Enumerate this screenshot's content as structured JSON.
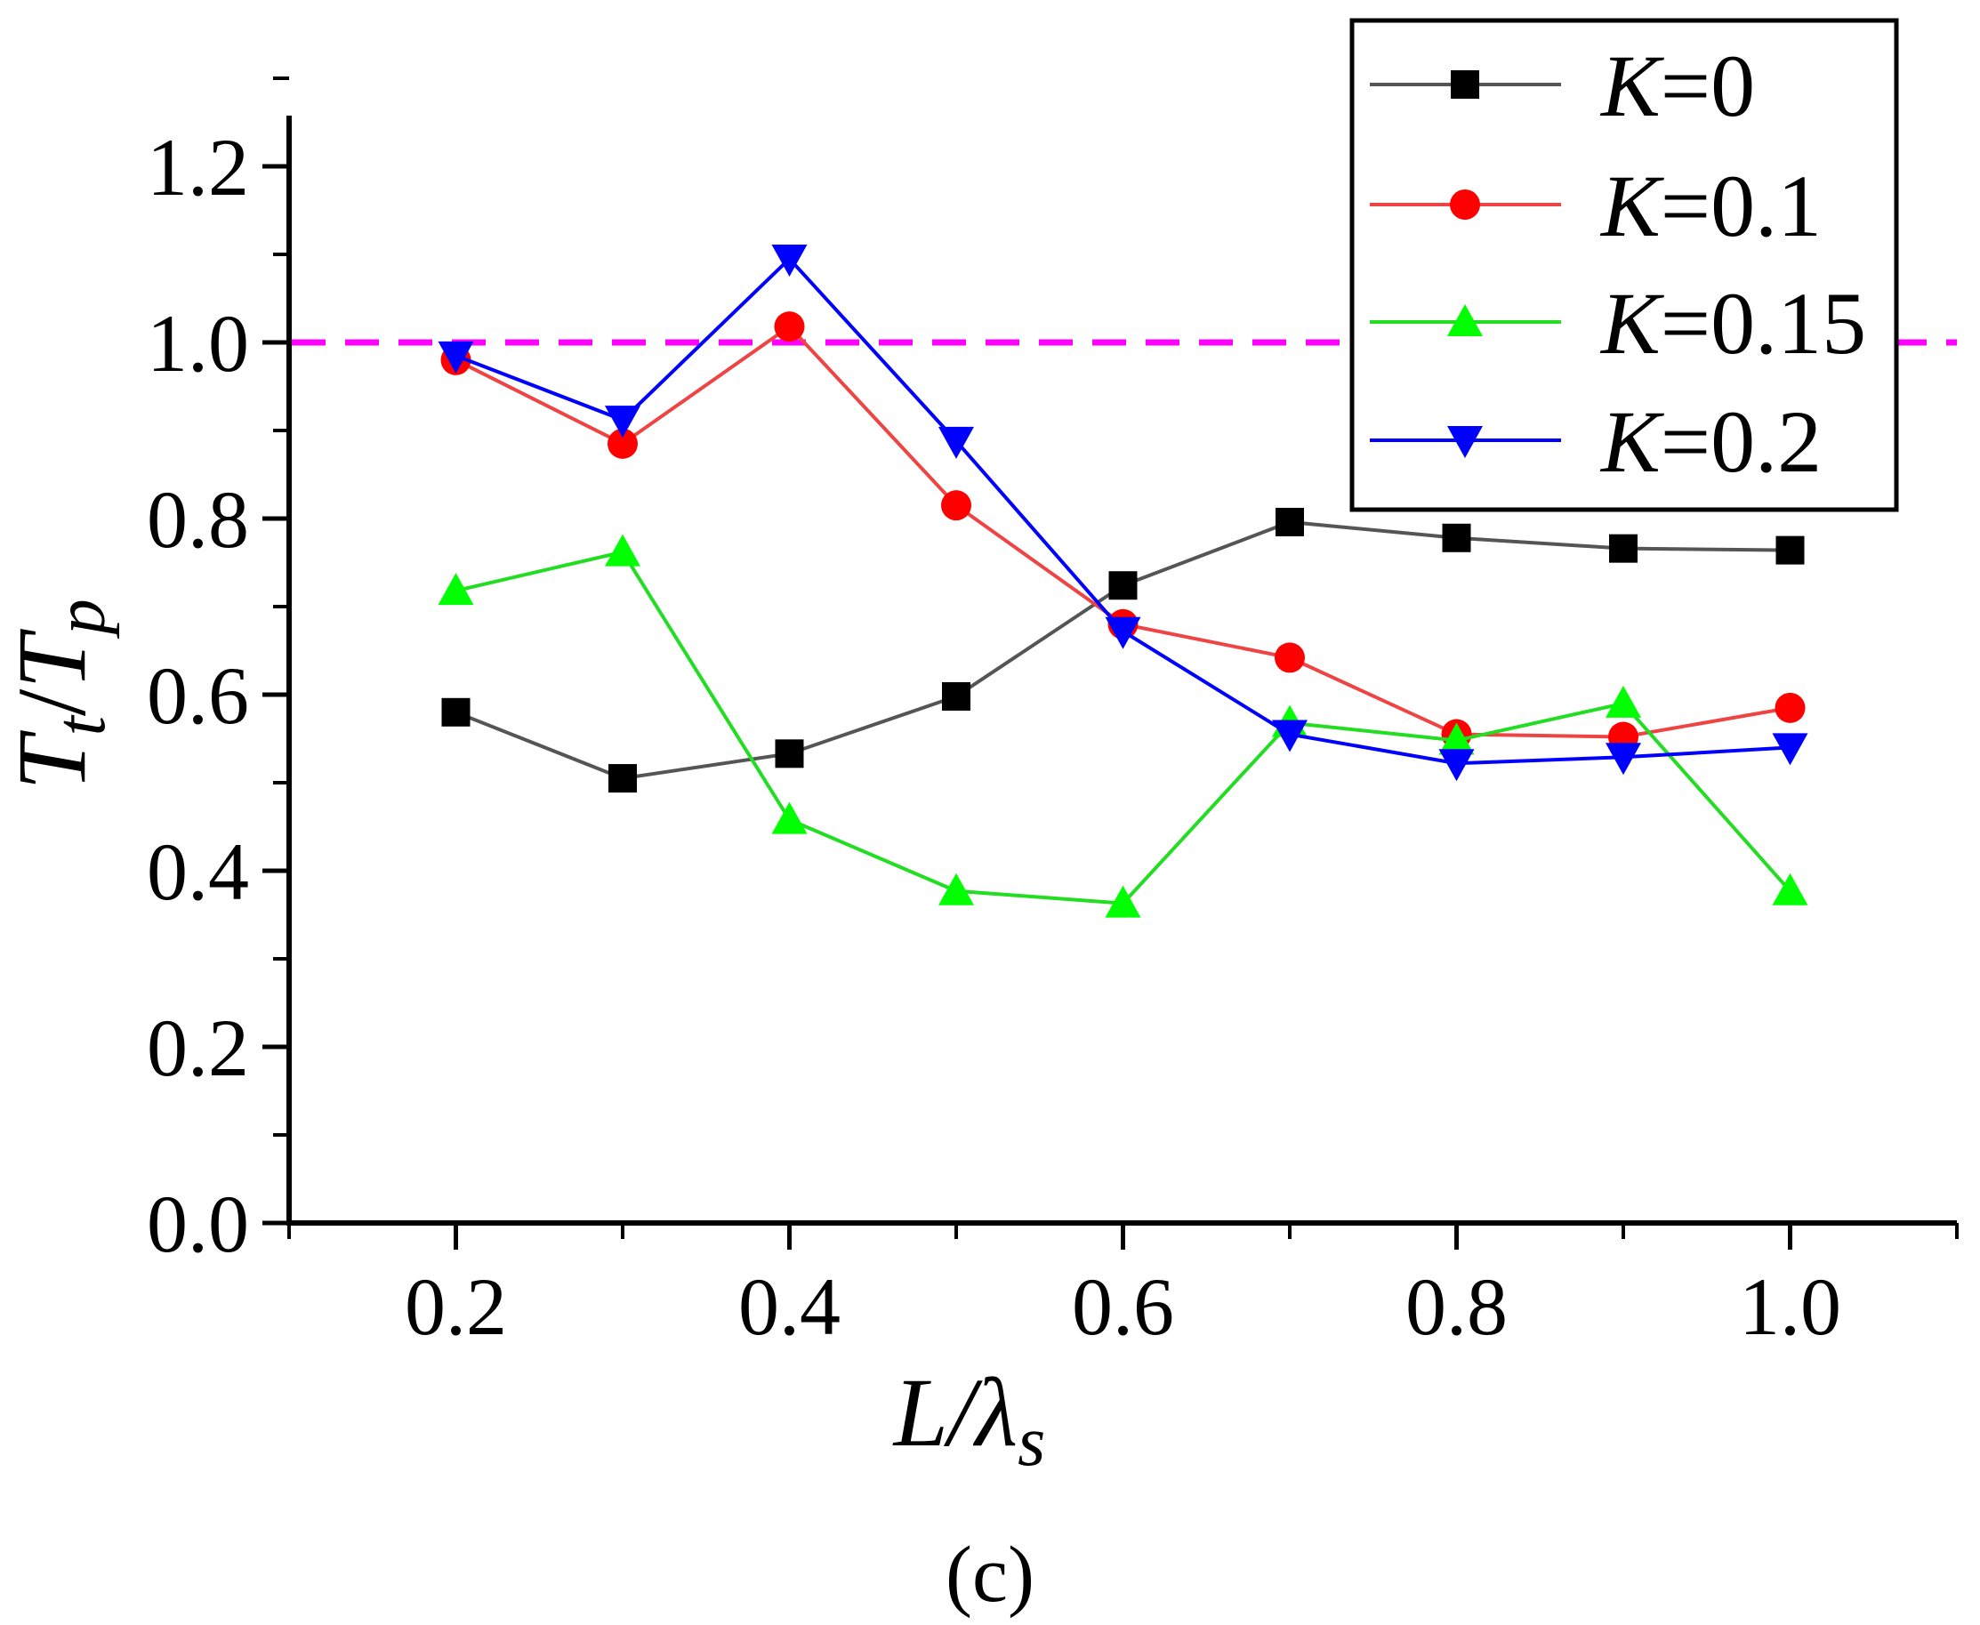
{
  "chart_data": {
    "type": "line",
    "panel_label": "(c)",
    "xlabel": {
      "main": "L/λ",
      "sub": "s"
    },
    "ylabel": {
      "t1": "T",
      "s1": "t",
      "slash": "/",
      "t2": "T",
      "s2": "p"
    },
    "xlim": [
      0.1,
      1.1
    ],
    "ylim": [
      0.0,
      1.25
    ],
    "xticks": [
      "0.2",
      "0.4",
      "0.6",
      "0.8",
      "1.0"
    ],
    "xtick_values": [
      0.2,
      0.4,
      0.6,
      0.8,
      1.0
    ],
    "yticks": [
      "0.0",
      "0.2",
      "0.4",
      "0.6",
      "0.8",
      "1.0",
      "1.2"
    ],
    "ytick_values": [
      0.0,
      0.2,
      0.4,
      0.6,
      0.8,
      1.0,
      1.2
    ],
    "reference_line": {
      "y": 1.0,
      "color": "#ff00ff",
      "style": "dashed"
    },
    "legend_position": "top-right",
    "x": [
      0.2,
      0.3,
      0.4,
      0.5,
      0.6,
      0.7,
      0.8,
      0.9,
      1.0
    ],
    "series": [
      {
        "name": "K=0",
        "k_symbol": "K",
        "k_value": "=0",
        "color": "#000000",
        "line_color": "#555555",
        "marker": "square",
        "values": [
          0.58,
          0.505,
          0.533,
          0.598,
          0.724,
          0.796,
          0.778,
          0.766,
          0.764
        ]
      },
      {
        "name": "K=0.1",
        "k_symbol": "K",
        "k_value": "=0.1",
        "color": "#ff0000",
        "line_color": "#ee4444",
        "marker": "circle",
        "values": [
          0.98,
          0.885,
          1.018,
          0.815,
          0.68,
          0.642,
          0.555,
          0.552,
          0.585
        ]
      },
      {
        "name": "K=0.15",
        "k_symbol": "K",
        "k_value": "=0.15",
        "color": "#00ff00",
        "line_color": "#22dd22",
        "marker": "triangle-up",
        "values": [
          0.718,
          0.762,
          0.458,
          0.377,
          0.363,
          0.568,
          0.548,
          0.59,
          0.377
        ]
      },
      {
        "name": "K=0.2",
        "k_symbol": "K",
        "k_value": "=0.2",
        "color": "#0000ff",
        "line_color": "#0000ff",
        "marker": "triangle-down",
        "values": [
          0.985,
          0.912,
          1.095,
          0.888,
          0.672,
          0.555,
          0.522,
          0.529,
          0.54
        ]
      }
    ]
  }
}
